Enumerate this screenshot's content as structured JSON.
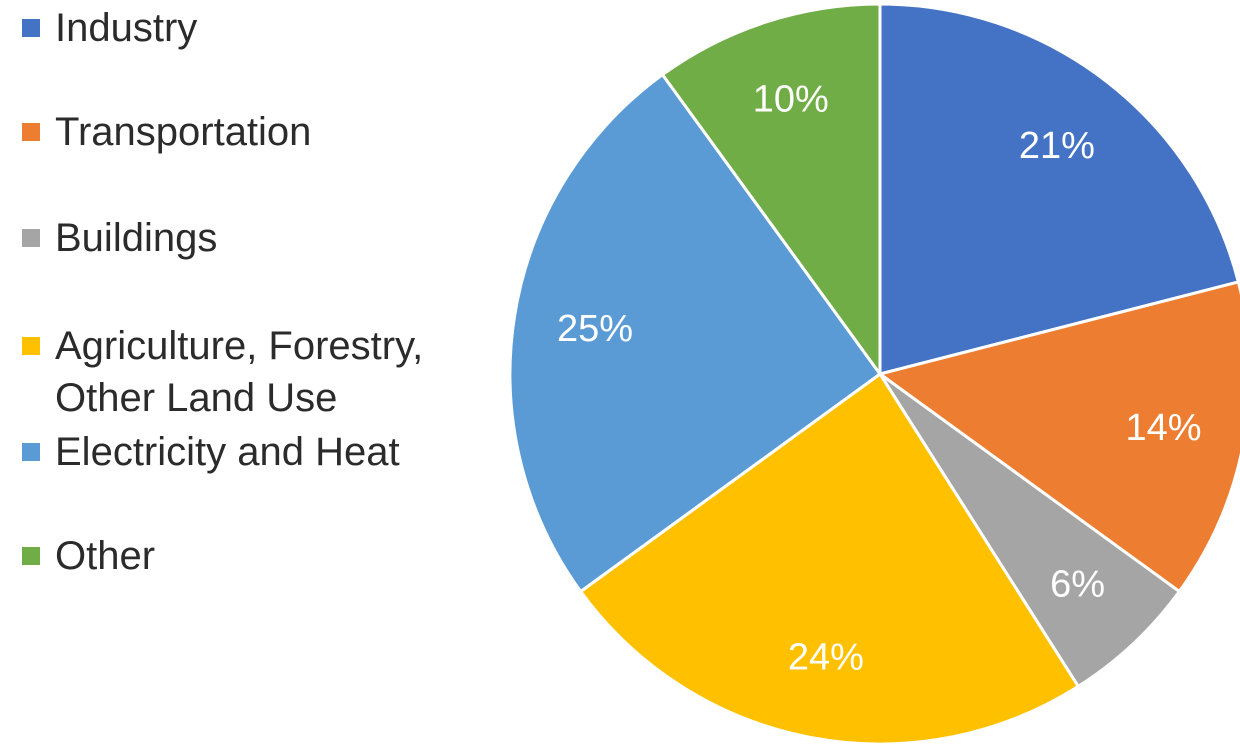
{
  "chart_data": {
    "type": "pie",
    "title": "",
    "start": "12 o'clock",
    "direction": "clockwise",
    "legend_position": "left",
    "slices": [
      {
        "name": "Industry",
        "value": 21,
        "label": "21%",
        "color": "#4472c4",
        "legend_lines": [
          "Industry"
        ]
      },
      {
        "name": "Transportation",
        "value": 14,
        "label": "14%",
        "color": "#ed7d31",
        "legend_lines": [
          "Transportation"
        ]
      },
      {
        "name": "Buildings",
        "value": 6,
        "label": "6%",
        "color": "#a5a5a5",
        "legend_lines": [
          "Buildings"
        ]
      },
      {
        "name": "Agriculture, Forestry, Other Land Use",
        "value": 24,
        "label": "24%",
        "color": "#ffc000",
        "legend_lines": [
          "Agriculture, Forestry,",
          "Other Land Use"
        ]
      },
      {
        "name": "Electricity and Heat",
        "value": 25,
        "label": "25%",
        "color": "#5b9bd5",
        "legend_lines": [
          "Electricity and Heat"
        ]
      },
      {
        "name": "Other",
        "value": 10,
        "label": "10%",
        "color": "#70ad47",
        "legend_lines": [
          "Other"
        ]
      }
    ]
  }
}
